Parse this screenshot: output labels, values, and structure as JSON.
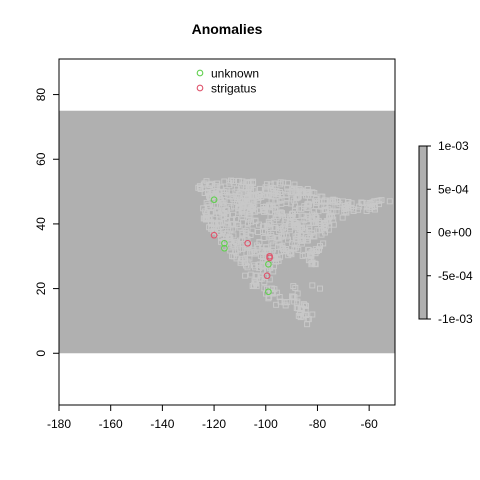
{
  "chart_data": {
    "type": "scatter",
    "title": "Anomalies",
    "xlabel": "",
    "ylabel": "",
    "xlim": [
      -180,
      -50
    ],
    "ylim": [
      -16,
      91
    ],
    "x_ticks": [
      -180,
      -160,
      -140,
      -120,
      -100,
      -80,
      -60
    ],
    "x_tick_labels": [
      "-180",
      "-160",
      "-140",
      "-120",
      "-100",
      "-80",
      "-60"
    ],
    "y_ticks": [
      0,
      20,
      40,
      60,
      80
    ],
    "y_tick_labels": [
      "0",
      "20",
      "40",
      "60",
      "80"
    ],
    "grid": false,
    "raster_extent": {
      "xmin": -180,
      "xmax": -50,
      "ymin": 0,
      "ymax": 75
    },
    "raster_color": "#b0b0b0",
    "background_points_color": "#c8c8c8",
    "background_region": "North and Central America occurrence records",
    "colorbar": {
      "range": [
        -0.001,
        0.001
      ],
      "ticks": [
        0.001,
        0.0005,
        0,
        -0.0005,
        -0.001
      ],
      "tick_labels": [
        "1e-03",
        "5e-04",
        "0e+00",
        "-5e-04",
        "-1e-03"
      ],
      "color": "#b0b0b0"
    },
    "legend": {
      "position": "top",
      "entries": [
        {
          "label": "unknown",
          "color": "#61d04f"
        },
        {
          "label": "strigatus",
          "color": "#df536b"
        }
      ]
    },
    "series": [
      {
        "name": "unknown",
        "color": "#61d04f",
        "points": [
          {
            "x": -120,
            "y": 47.5
          },
          {
            "x": -116,
            "y": 34
          },
          {
            "x": -116,
            "y": 32.5
          },
          {
            "x": -99,
            "y": 27.5
          },
          {
            "x": -99,
            "y": 19
          }
        ]
      },
      {
        "name": "strigatus",
        "color": "#df536b",
        "points": [
          {
            "x": -120,
            "y": 36.5
          },
          {
            "x": -107,
            "y": 34
          },
          {
            "x": -98.5,
            "y": 30
          },
          {
            "x": -98.5,
            "y": 29.5
          },
          {
            "x": -99.5,
            "y": 24
          }
        ]
      }
    ]
  }
}
